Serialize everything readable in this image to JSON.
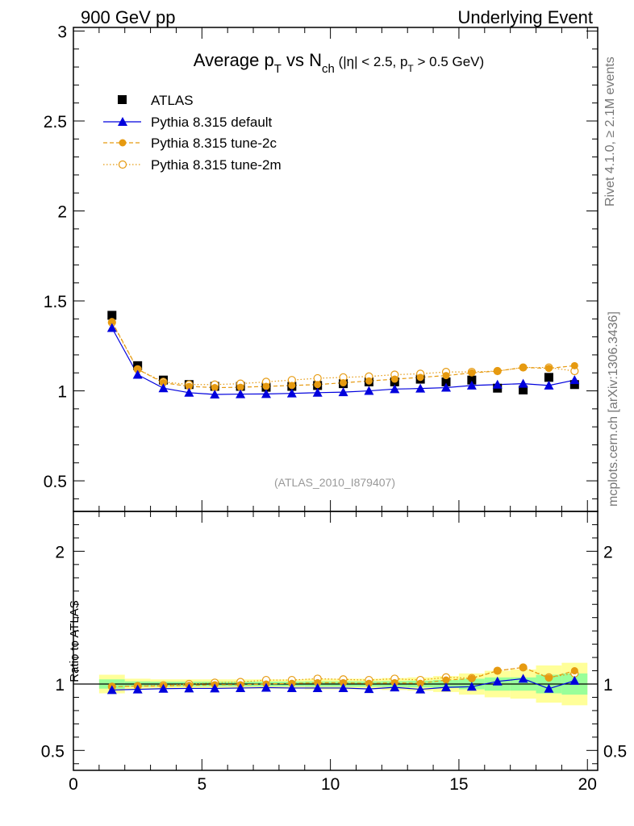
{
  "header": {
    "left": "900 GeV pp",
    "right": "Underlying Event"
  },
  "side": {
    "rivet": "Rivet 4.1.0, ≥ 2.1M events",
    "mcplots": "mcplots.cern.ch [arXiv:1306.3436]"
  },
  "chart_data": {
    "type": "scatter",
    "title": {
      "main": "Average p",
      "sub1": "T",
      "vs": " vs N",
      "sub2": "ch",
      "cut1": " (|η| < 2.5, p",
      "sub3": "T",
      "cut2": " > 0.5 GeV)"
    },
    "reference": "(ATLAS_2010_I879407)",
    "xlabel": "",
    "ylabel": "",
    "ratio_ylabel": "Ratio to ATLAS",
    "xlim": [
      0,
      20.4
    ],
    "ylim": [
      0.33,
      3.02
    ],
    "ratio_ylim": [
      0.35,
      2.3
    ],
    "x_ticks": [
      0,
      5,
      10,
      15,
      20
    ],
    "y_ticks": [
      0.5,
      1,
      1.5,
      2,
      2.5,
      3
    ],
    "y_tick_labels": [
      "0.5",
      "1",
      "1.5",
      "2",
      "2.5",
      "3"
    ],
    "ratio_ticks": [
      0.5,
      1,
      2
    ],
    "ratio_tick_labels": [
      "0.5",
      "1",
      "2"
    ],
    "x": [
      1.5,
      2.5,
      3.5,
      4.5,
      5.5,
      6.5,
      7.5,
      8.5,
      9.5,
      10.5,
      11.5,
      12.5,
      13.5,
      14.5,
      15.5,
      16.5,
      17.5,
      18.5,
      19.5
    ],
    "series": [
      {
        "name": "ATLAS",
        "color": "#000000",
        "marker": "square",
        "values": [
          1.42,
          1.14,
          1.06,
          1.035,
          1.025,
          1.025,
          1.02,
          1.025,
          1.03,
          1.04,
          1.05,
          1.05,
          1.065,
          1.05,
          1.06,
          1.015,
          1.005,
          1.075,
          1.035
        ],
        "ratio_band_green": [
          0.035,
          0.02,
          0.018,
          0.018,
          0.018,
          0.018,
          0.018,
          0.018,
          0.02,
          0.02,
          0.02,
          0.022,
          0.025,
          0.03,
          0.04,
          0.05,
          0.05,
          0.07,
          0.08
        ],
        "ratio_band_yellow": [
          0.07,
          0.04,
          0.035,
          0.035,
          0.035,
          0.035,
          0.035,
          0.035,
          0.04,
          0.04,
          0.04,
          0.045,
          0.05,
          0.06,
          0.08,
          0.1,
          0.11,
          0.14,
          0.16
        ]
      },
      {
        "name": "Pythia 8.315 default",
        "color": "#0000dd",
        "marker": "triangle",
        "line": "solid",
        "values": [
          1.35,
          1.09,
          1.015,
          0.99,
          0.98,
          0.982,
          0.983,
          0.986,
          0.99,
          0.993,
          1.0,
          1.01,
          1.013,
          1.018,
          1.03,
          1.035,
          1.04,
          1.03,
          1.06
        ],
        "ratio": [
          0.955,
          0.96,
          0.965,
          0.967,
          0.967,
          0.97,
          0.973,
          0.97,
          0.97,
          0.97,
          0.963,
          0.975,
          0.96,
          0.975,
          0.98,
          1.02,
          1.04,
          0.965,
          1.025
        ]
      },
      {
        "name": "Pythia 8.315 tune-2c",
        "color": "#e69a10",
        "marker": "circle",
        "line": "dashed",
        "values": [
          1.385,
          1.12,
          1.045,
          1.025,
          1.018,
          1.02,
          1.025,
          1.03,
          1.035,
          1.045,
          1.055,
          1.065,
          1.075,
          1.085,
          1.1,
          1.11,
          1.13,
          1.125,
          1.14
        ],
        "ratio": [
          0.98,
          0.985,
          0.985,
          0.99,
          0.995,
          0.995,
          1.0,
          1.005,
          1.01,
          1.01,
          1.005,
          1.01,
          1.005,
          1.03,
          1.04,
          1.1,
          1.125,
          1.045,
          1.1
        ]
      },
      {
        "name": "Pythia 8.315 tune-2m",
        "color": "#e69a10",
        "marker": "open-circle",
        "line": "dotted",
        "values": [
          1.38,
          1.12,
          1.05,
          1.035,
          1.035,
          1.04,
          1.05,
          1.06,
          1.07,
          1.075,
          1.08,
          1.09,
          1.095,
          1.105,
          1.105,
          1.11,
          1.13,
          1.13,
          1.11
        ],
        "ratio": [
          0.98,
          0.985,
          0.99,
          1.0,
          1.01,
          1.015,
          1.03,
          1.03,
          1.04,
          1.035,
          1.03,
          1.04,
          1.03,
          1.05,
          1.045,
          1.1,
          1.125,
          1.05,
          1.08
        ]
      }
    ]
  }
}
